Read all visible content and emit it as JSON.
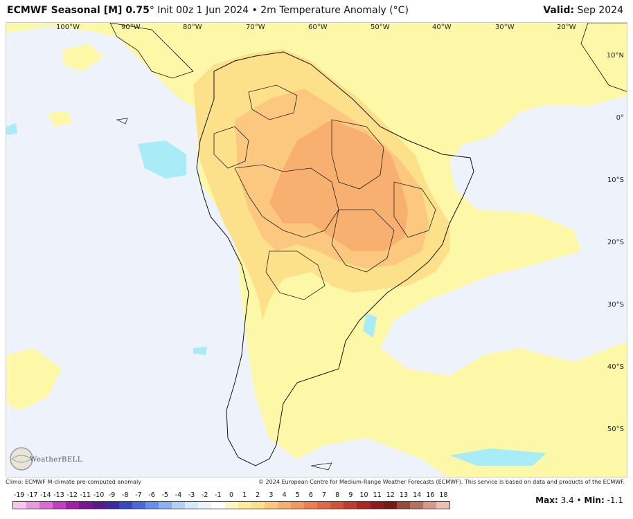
{
  "header": {
    "model": "ECMWF Seasonal [M] 0.75",
    "degree": "°",
    "init": " Init 00z 1 Jun 2024 • 2m Temperature Anomaly (°C)",
    "valid_label": "Valid:",
    "valid_value": " Sep 2024"
  },
  "map": {
    "lon_labels": [
      "100°W",
      "90°W",
      "80°W",
      "70°W",
      "60°W",
      "50°W",
      "40°W",
      "30°W",
      "20°W"
    ],
    "lat_labels": [
      "10°N",
      "0°",
      "10°S",
      "20°S",
      "30°S",
      "40°S",
      "50°S"
    ],
    "logo_text": "WeatherBELL"
  },
  "footer": {
    "climo": "Climo: ECMWF M-climate pre-computed anomaly",
    "credit": "© 2024 European Centre for Medium-Range Weather Forecasts (ECMWF). This service is based on data and products of the ECMWF."
  },
  "scale": {
    "labels": [
      "-19",
      "-17",
      "-14",
      "-13",
      "-12",
      "-11",
      "-10",
      "-9",
      "-8",
      "-7",
      "-6",
      "-5",
      "-4",
      "-3",
      "-2",
      "-1",
      "0",
      "1",
      "2",
      "3",
      "4",
      "5",
      "6",
      "7",
      "8",
      "9",
      "10",
      "11",
      "12",
      "13",
      "14",
      "16",
      "18"
    ],
    "colors": [
      "#f7c6ee",
      "#e99be0",
      "#d86fd0",
      "#c040bf",
      "#a020a8",
      "#7a1690",
      "#5a1a8a",
      "#3c2aa0",
      "#3848c0",
      "#4a6ad8",
      "#6a8de8",
      "#8fb0f0",
      "#b6d0f8",
      "#d8e8fb",
      "#eef3fb",
      "#ffffff",
      "#fbf7c0",
      "#fdeca0",
      "#fde08a",
      "#fcc880",
      "#f8b070",
      "#f29860",
      "#ec8054",
      "#e06a48",
      "#d2523c",
      "#bf3c30",
      "#a82a26",
      "#8e1e1e",
      "#7a1818",
      "#9a4a3a",
      "#b87060",
      "#d49a8a",
      "#e8c0b6"
    ],
    "max_label": "Max:",
    "max_value": " 3.4 • ",
    "min_label": "Min:",
    "min_value": " -1.1"
  }
}
